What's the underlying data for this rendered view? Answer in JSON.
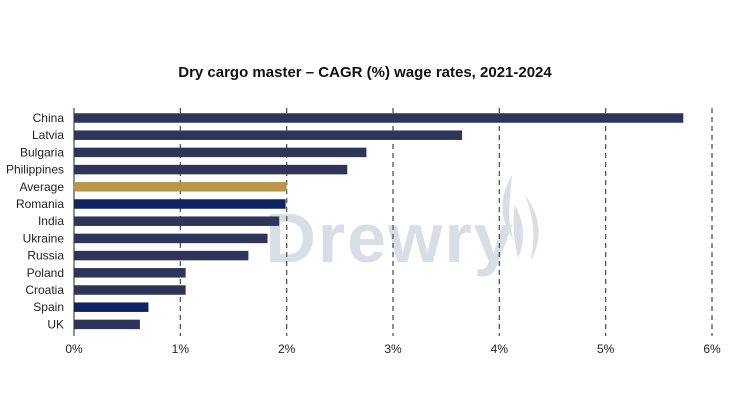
{
  "chart_data": {
    "type": "bar",
    "orientation": "horizontal",
    "title": "Dry cargo master – CAGR (%) wage rates, 2021-2024",
    "categories": [
      "China",
      "Latvia",
      "Bulgaria",
      "Philippines",
      "Average",
      "Romania",
      "India",
      "Ukraine",
      "Russia",
      "Poland",
      "Croatia",
      "Spain",
      "UK"
    ],
    "values": [
      5.73,
      3.65,
      2.75,
      2.57,
      2.0,
      1.99,
      1.93,
      1.82,
      1.64,
      1.05,
      1.05,
      0.7,
      0.62
    ],
    "bar_colors": [
      "#2e3558",
      "#2e3558",
      "#2e3558",
      "#2e3558",
      "#b8974a",
      "#0f2460",
      "#2e3558",
      "#2e3558",
      "#2e3558",
      "#2e3558",
      "#2e3558",
      "#0f2460",
      "#2e3558"
    ],
    "xlim": [
      0,
      6
    ],
    "xticks": [
      "0%",
      "1%",
      "2%",
      "3%",
      "4%",
      "5%",
      "6%"
    ],
    "xlabel": "",
    "ylabel": "",
    "grid": "vertical dashed"
  },
  "watermark": {
    "text": "Drewry",
    "color": "#d9dee6"
  }
}
